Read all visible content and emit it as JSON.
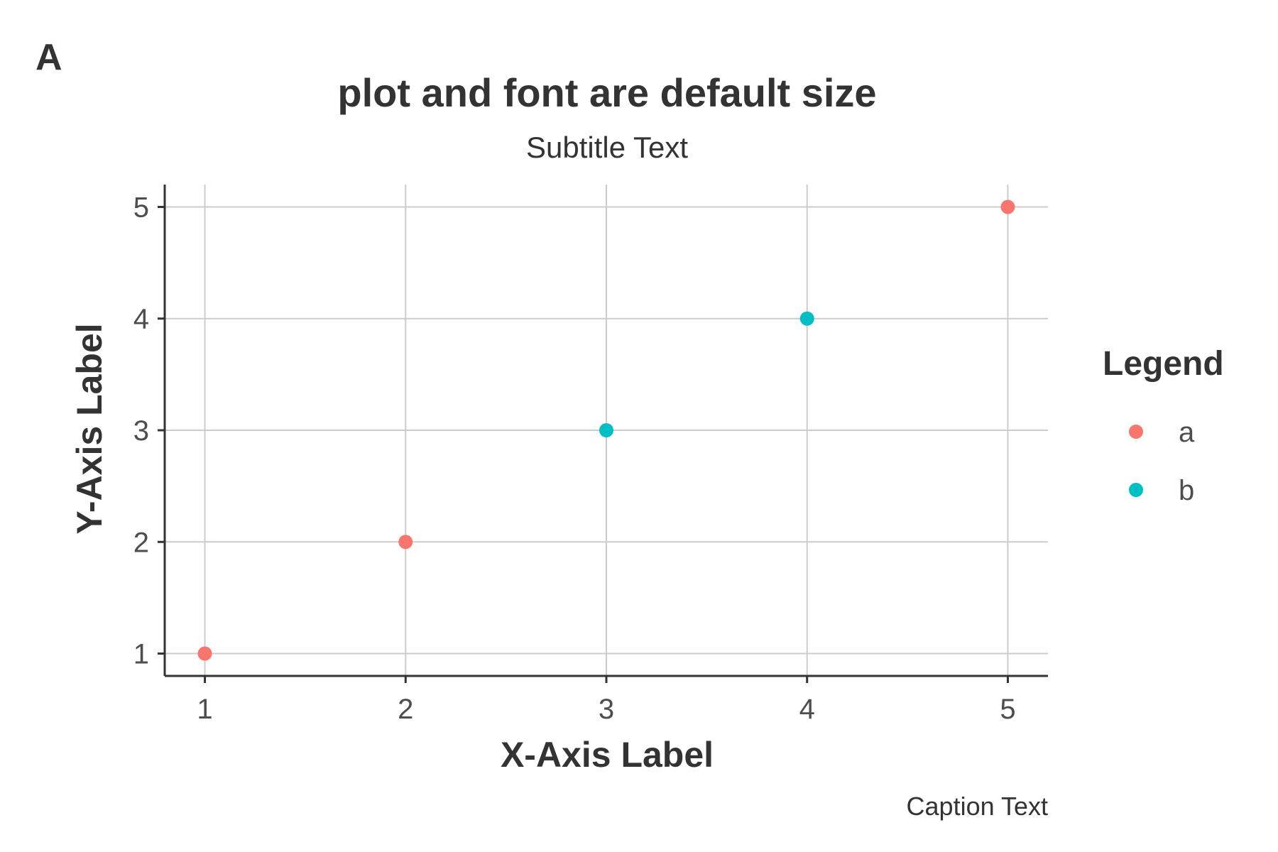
{
  "tag": "A",
  "chart_data": {
    "type": "scatter",
    "title": "plot and font are default size",
    "subtitle": "Subtitle Text",
    "xlabel": "X-Axis Label",
    "ylabel": "Y-Axis Label",
    "caption": "Caption Text",
    "xlim": [
      0.8,
      5.2
    ],
    "ylim": [
      0.8,
      5.2
    ],
    "x_ticks": [
      1,
      2,
      3,
      4,
      5
    ],
    "y_ticks": [
      1,
      2,
      3,
      4,
      5
    ],
    "grid": true,
    "legend": {
      "title": "Legend",
      "position": "right",
      "entries": [
        {
          "label": "a",
          "color": "#F8766D"
        },
        {
          "label": "b",
          "color": "#00BFC4"
        }
      ]
    },
    "series": [
      {
        "name": "a",
        "color": "#F8766D",
        "points": [
          {
            "x": 1,
            "y": 1
          },
          {
            "x": 2,
            "y": 2
          },
          {
            "x": 5,
            "y": 5
          }
        ]
      },
      {
        "name": "b",
        "color": "#00BFC4",
        "points": [
          {
            "x": 3,
            "y": 3
          },
          {
            "x": 4,
            "y": 4
          }
        ]
      }
    ]
  }
}
